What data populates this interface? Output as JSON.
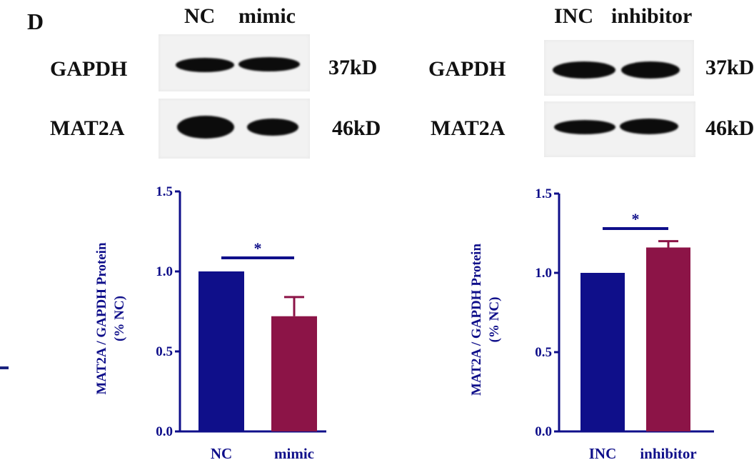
{
  "panel_letter": "D",
  "blots": [
    {
      "lane_labels": [
        "NC",
        "mimic"
      ],
      "rows": [
        {
          "protein": "GAPDH",
          "size": "37kD"
        },
        {
          "protein": "MAT2A",
          "size": "46kD"
        }
      ]
    },
    {
      "lane_labels": [
        "INC",
        "inhibitor"
      ],
      "rows": [
        {
          "protein": "GAPDH",
          "size": "37kD"
        },
        {
          "protein": "MAT2A",
          "size": "46kD"
        }
      ]
    }
  ],
  "colors": {
    "control": "#0f0f8a",
    "treatment": "#8c1447",
    "axis": "#0f0f8a"
  },
  "chart_data": [
    {
      "type": "bar",
      "categories": [
        "NC",
        "mimic"
      ],
      "values": [
        1.0,
        0.72
      ],
      "errors": [
        0,
        0.12
      ],
      "ylabel": "MAT2A / GAPDH Protein",
      "ylabel2": "(% NC)",
      "ylim": [
        0,
        1.5
      ],
      "yticks": [
        "0.0",
        "0.5",
        "1.0",
        "1.5"
      ],
      "significance": "*"
    },
    {
      "type": "bar",
      "categories": [
        "INC",
        "inhibitor"
      ],
      "values": [
        1.0,
        1.16
      ],
      "errors": [
        0,
        0.04
      ],
      "ylabel": "MAT2A / GAPDH Protein",
      "ylabel2": "(% NC)",
      "ylim": [
        0,
        1.5
      ],
      "yticks": [
        "0.0",
        "0.5",
        "1.0",
        "1.5"
      ],
      "significance": "*"
    }
  ]
}
